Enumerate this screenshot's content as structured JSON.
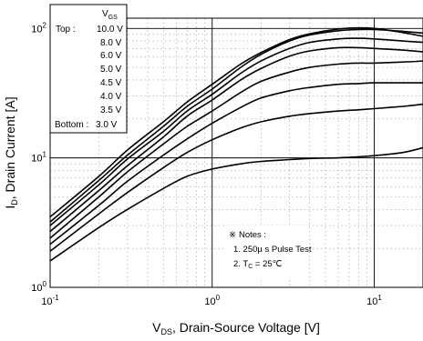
{
  "chart_data": {
    "type": "line",
    "xscale": "log",
    "yscale": "log",
    "xlim": [
      0.1,
      20
    ],
    "ylim": [
      1,
      120
    ],
    "grid": true,
    "x_ticks": [
      {
        "value": 0.1,
        "base": "10",
        "exp": "-1"
      },
      {
        "value": 1,
        "base": "10",
        "exp": "0"
      },
      {
        "value": 10,
        "base": "10",
        "exp": "1"
      }
    ],
    "y_ticks": [
      {
        "value": 1,
        "base": "10",
        "exp": "0"
      },
      {
        "value": 10,
        "base": "10",
        "exp": "1"
      },
      {
        "value": 100,
        "base": "10",
        "exp": "2"
      }
    ],
    "xlabel": {
      "main": "V",
      "sub": "DS",
      "rest": ", Drain-Source Voltage [V]"
    },
    "ylabel": {
      "main": "I",
      "sub": "D",
      "rest": ", Drain Current [A]"
    },
    "legend": {
      "position": "top-left",
      "header_main": "V",
      "header_sub": "GS",
      "top_label": "Top :",
      "bottom_label": "Bottom :",
      "entries": [
        "10.0 V",
        "8.0 V",
        "6.0 V",
        "5.0 V",
        "4.5 V",
        "4.0 V",
        "3.5 V",
        "3.0 V"
      ]
    },
    "notes": {
      "symbol": "※",
      "title": "Notes :",
      "line1": "1. 250µ s Pulse Test",
      "line2_prefix": "2. T",
      "line2_sub": "C",
      "line2_suffix": " = 25℃"
    },
    "series": [
      {
        "name": "10.0 V",
        "points": [
          [
            0.1,
            3.5
          ],
          [
            0.2,
            7.2
          ],
          [
            0.3,
            11.5
          ],
          [
            0.5,
            19
          ],
          [
            0.7,
            27
          ],
          [
            1,
            37
          ],
          [
            1.5,
            53
          ],
          [
            2,
            65
          ],
          [
            3,
            82
          ],
          [
            4,
            91
          ],
          [
            6,
            99
          ],
          [
            8,
            101
          ],
          [
            10,
            100
          ],
          [
            15,
            93
          ],
          [
            20,
            87
          ]
        ]
      },
      {
        "name": "8.0 V",
        "points": [
          [
            0.1,
            3.2
          ],
          [
            0.2,
            6.7
          ],
          [
            0.3,
            10.5
          ],
          [
            0.5,
            17.5
          ],
          [
            0.7,
            25
          ],
          [
            1,
            34
          ],
          [
            1.5,
            50
          ],
          [
            2,
            63
          ],
          [
            3,
            80
          ],
          [
            4,
            89
          ],
          [
            6,
            96
          ],
          [
            8,
            98
          ],
          [
            10,
            98
          ],
          [
            15,
            95
          ],
          [
            20,
            92
          ]
        ]
      },
      {
        "name": "6.0 V",
        "points": [
          [
            0.1,
            3.0
          ],
          [
            0.2,
            6.2
          ],
          [
            0.3,
            9.8
          ],
          [
            0.5,
            16
          ],
          [
            0.7,
            23
          ],
          [
            1,
            31
          ],
          [
            1.5,
            45
          ],
          [
            2,
            56
          ],
          [
            3,
            70
          ],
          [
            4,
            78
          ],
          [
            6,
            83
          ],
          [
            8,
            84
          ],
          [
            10,
            83
          ],
          [
            15,
            80
          ],
          [
            20,
            78
          ]
        ]
      },
      {
        "name": "5.0 V",
        "points": [
          [
            0.1,
            2.7
          ],
          [
            0.2,
            5.6
          ],
          [
            0.3,
            8.7
          ],
          [
            0.5,
            14.5
          ],
          [
            0.7,
            21
          ],
          [
            1,
            28
          ],
          [
            1.5,
            40
          ],
          [
            2,
            49
          ],
          [
            3,
            61
          ],
          [
            4,
            67
          ],
          [
            6,
            71
          ],
          [
            8,
            71
          ],
          [
            10,
            70
          ],
          [
            15,
            68
          ],
          [
            20,
            66
          ]
        ]
      },
      {
        "name": "4.5 V",
        "points": [
          [
            0.1,
            2.4
          ],
          [
            0.2,
            5.0
          ],
          [
            0.3,
            7.8
          ],
          [
            0.5,
            12.8
          ],
          [
            0.7,
            17.5
          ],
          [
            1,
            23
          ],
          [
            1.5,
            32
          ],
          [
            2,
            39
          ],
          [
            3,
            46
          ],
          [
            4,
            50
          ],
          [
            6,
            53
          ],
          [
            8,
            54
          ],
          [
            10,
            54
          ],
          [
            15,
            55
          ],
          [
            20,
            56
          ]
        ]
      },
      {
        "name": "4.0 V",
        "points": [
          [
            0.1,
            2.15
          ],
          [
            0.2,
            4.3
          ],
          [
            0.3,
            6.6
          ],
          [
            0.5,
            10.5
          ],
          [
            0.7,
            14
          ],
          [
            1,
            18.5
          ],
          [
            1.5,
            24.5
          ],
          [
            2,
            29
          ],
          [
            3,
            33
          ],
          [
            4,
            35
          ],
          [
            6,
            37
          ],
          [
            8,
            37.5
          ],
          [
            10,
            38
          ],
          [
            15,
            38
          ],
          [
            20,
            38
          ]
        ]
      },
      {
        "name": "3.5 V",
        "points": [
          [
            0.1,
            1.9
          ],
          [
            0.2,
            3.7
          ],
          [
            0.3,
            5.4
          ],
          [
            0.5,
            8.4
          ],
          [
            0.7,
            11
          ],
          [
            1,
            13.8
          ],
          [
            1.5,
            17
          ],
          [
            2,
            19
          ],
          [
            3,
            21
          ],
          [
            4,
            22
          ],
          [
            6,
            23
          ],
          [
            8,
            23.5
          ],
          [
            10,
            24
          ],
          [
            15,
            25
          ],
          [
            20,
            26
          ]
        ]
      },
      {
        "name": "3.0 V",
        "points": [
          [
            0.1,
            1.6
          ],
          [
            0.2,
            2.9
          ],
          [
            0.3,
            4.0
          ],
          [
            0.5,
            5.8
          ],
          [
            0.7,
            7.2
          ],
          [
            1,
            8.2
          ],
          [
            1.5,
            9.0
          ],
          [
            2,
            9.4
          ],
          [
            3,
            9.7
          ],
          [
            4,
            9.9
          ],
          [
            6,
            10.0
          ],
          [
            8,
            10.2
          ],
          [
            10,
            10.4
          ],
          [
            15,
            11
          ],
          [
            20,
            12
          ]
        ]
      }
    ]
  }
}
